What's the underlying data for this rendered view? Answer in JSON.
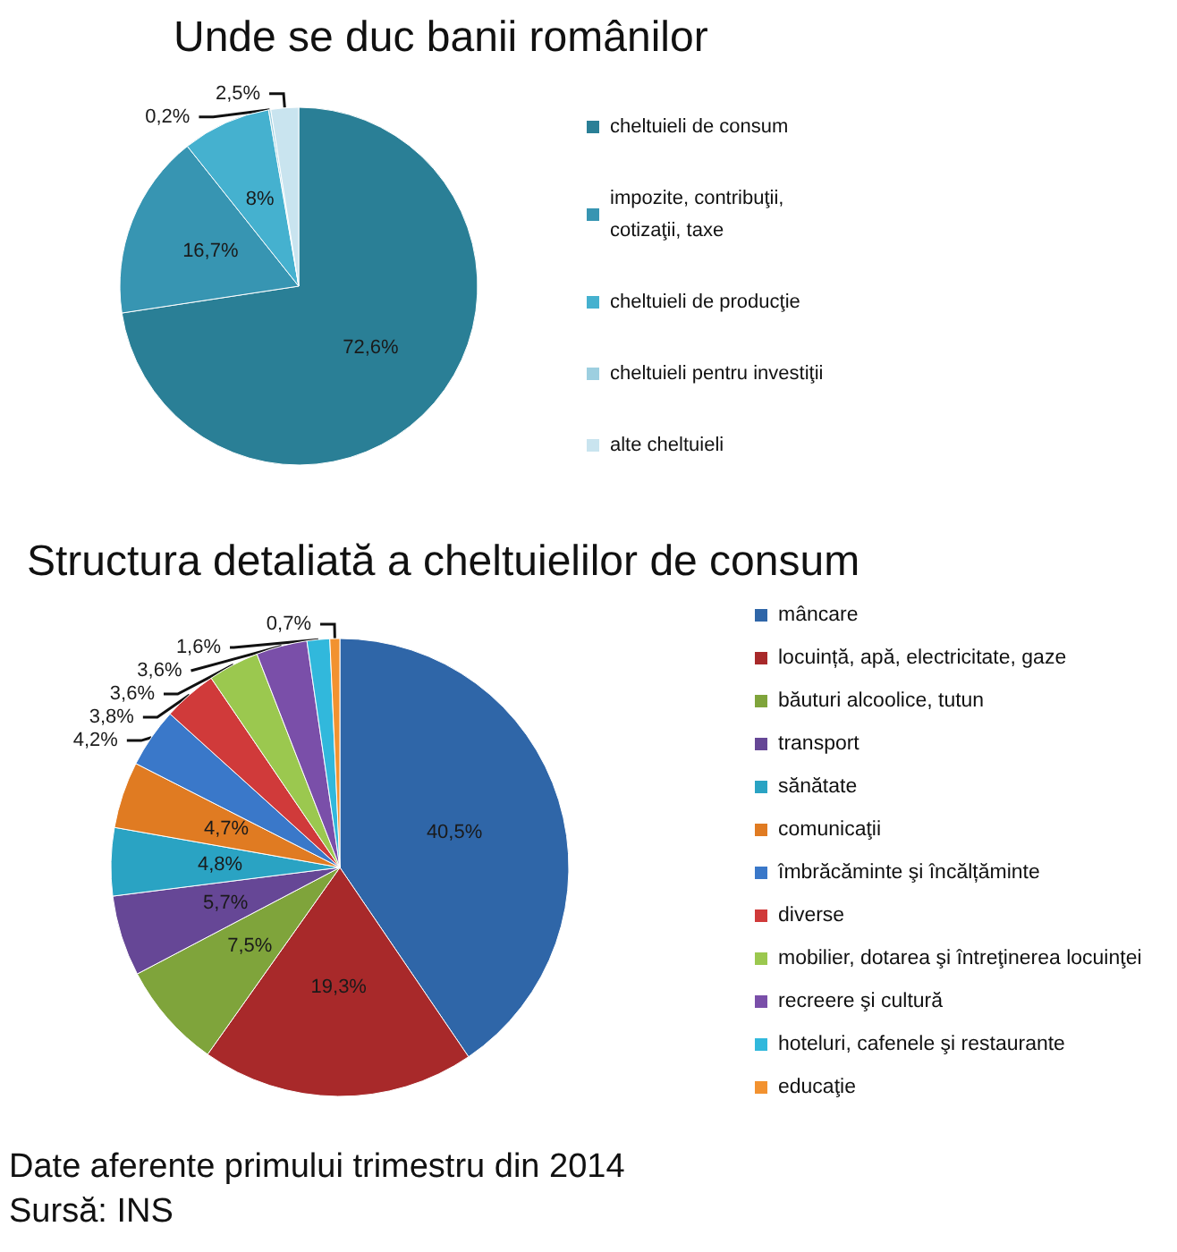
{
  "chart_data": [
    {
      "type": "pie",
      "title": "Unde se duc banii românilor",
      "categories": [
        "cheltuieli de consum",
        "impozite, contribuţii, cotizaţii, taxe",
        "cheltuieli de producţie",
        "cheltuieli pentru investiţii",
        "alte cheltuieli"
      ],
      "values": [
        72.6,
        16.7,
        8,
        0.2,
        2.5
      ],
      "value_labels": [
        "72,6%",
        "16,7%",
        "8%",
        "0,2%",
        "2,5%"
      ],
      "colors": [
        "#2a7f96",
        "#3795b2",
        "#45b1cf",
        "#9dcfe0",
        "#c9e4ef"
      ],
      "legend": "right"
    },
    {
      "type": "pie",
      "title": "Structura detaliată a cheltuielilor de consum",
      "categories": [
        "mâncare",
        "locuință, apă, electricitate, gaze",
        "băuturi alcoolice, tutun",
        "transport",
        "sănătate",
        "comunicaţii",
        "îmbrăcăminte şi încălțăminte",
        "diverse",
        "mobilier, dotarea şi întreţinerea locuinţei",
        "recreere şi cultură",
        "hoteluri, cafenele şi restaurante",
        "educaţie"
      ],
      "values": [
        40.5,
        19.3,
        7.5,
        5.7,
        4.8,
        4.7,
        4.2,
        3.8,
        3.6,
        3.6,
        1.6,
        0.7
      ],
      "value_labels": [
        "40,5%",
        "19,3%",
        "7,5%",
        "5,7%",
        "4,8%",
        "4,7%",
        "4,2%",
        "3,8%",
        "3,6%",
        "3,6%",
        "1,6%",
        "0,7%"
      ],
      "colors": [
        "#2f66a8",
        "#a8292a",
        "#7fa43b",
        "#664796",
        "#2aa3c3",
        "#e07b22",
        "#3a78c9",
        "#d03a3a",
        "#9bc84f",
        "#7a4fa9",
        "#31b8dc",
        "#f29230"
      ],
      "legend": "right",
      "annotations": [
        "Date aferente primului trimestru din 2014",
        "Sursă: INS"
      ]
    }
  ]
}
